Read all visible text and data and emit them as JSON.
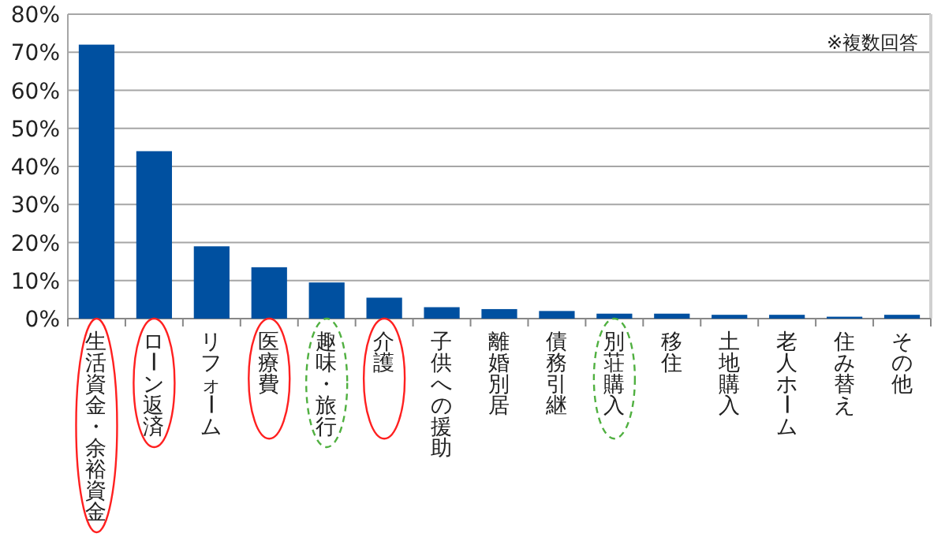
{
  "chart_data": {
    "type": "bar",
    "categories": [
      "生活資金・余裕資金",
      "ローン返済",
      "リフォーム",
      "医療費",
      "趣味・旅行",
      "介護",
      "子供への援助",
      "離婚別居",
      "債務引継",
      "別荘購入",
      "移住",
      "土地購入",
      "老人ホーム",
      "住み替え",
      "その他"
    ],
    "values": [
      72,
      44,
      19,
      13.5,
      9.5,
      5.5,
      3,
      2.5,
      2,
      1.3,
      1.3,
      1,
      1,
      0.5,
      1
    ],
    "color": "#0050a0",
    "ylim": [
      0,
      80
    ],
    "yticks": [
      {
        "value": 0,
        "label": "0%"
      },
      {
        "value": 10,
        "label": "10%"
      },
      {
        "value": 20,
        "label": "20%"
      },
      {
        "value": 30,
        "label": "30%"
      },
      {
        "value": 40,
        "label": "40%"
      },
      {
        "value": 50,
        "label": "50%"
      },
      {
        "value": 60,
        "label": "60%"
      },
      {
        "value": 70,
        "label": "70%"
      },
      {
        "value": 80,
        "label": "80%"
      }
    ],
    "grid": "y",
    "annotations": [
      "※複数回答"
    ]
  }
}
